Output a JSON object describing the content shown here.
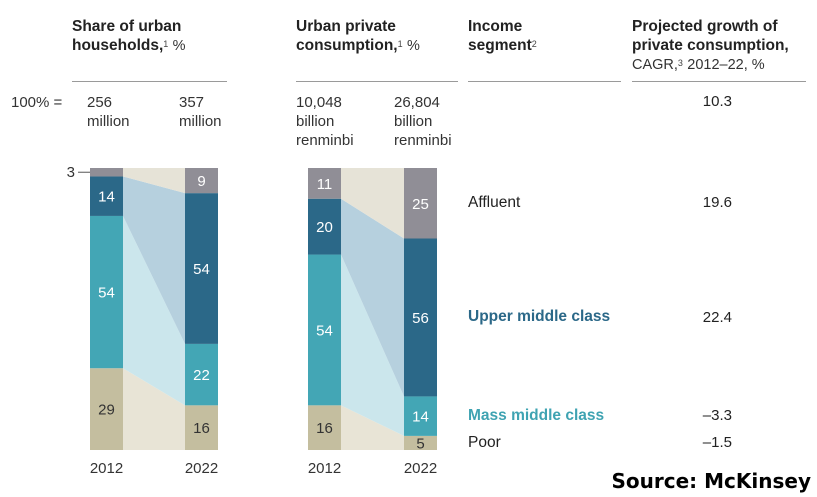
{
  "headers": {
    "households": {
      "line1": "Share of urban",
      "line2": "households,",
      "sup": "1",
      "unit": "%"
    },
    "consumption": {
      "line1": "Urban private",
      "line2": "consumption,",
      "sup": "1",
      "unit": "%"
    },
    "segment": {
      "line1": "Income",
      "line2": "segment",
      "sup": "2"
    },
    "growth": {
      "line1": "Projected growth of",
      "line2": "private consumption,",
      "line3a": "CAGR,",
      "sup": "3",
      "line3b": "2012–22, %"
    }
  },
  "totals": {
    "label": "100% =",
    "households_2012": {
      "l1": "256",
      "l2": "million"
    },
    "households_2022": {
      "l1": "357",
      "l2": "million"
    },
    "consumption_2012": {
      "l1": "10,048",
      "l2": "billion",
      "l3": "renminbi"
    },
    "consumption_2022": {
      "l1": "26,804",
      "l2": "billion",
      "l3": "renminbi"
    },
    "growth_total": "10.3"
  },
  "segments": [
    {
      "name": "Affluent",
      "growth": "19.6"
    },
    {
      "name": "Upper middle class",
      "growth": "22.4"
    },
    {
      "name": "Mass middle class",
      "growth": "–3.3"
    },
    {
      "name": "Poor",
      "growth": "–1.5"
    }
  ],
  "colors": {
    "poor": "#c4be9f",
    "mass": "#43a6b5",
    "upper": "#2b6888",
    "affluent": "#908e96",
    "link_poor": "#e8e4d6",
    "link_mass": "#cbe6ec",
    "link_upper": "#b6d0de",
    "link_affluent": "#e6e3d7"
  },
  "source": "Source: McKinsey",
  "chart_data": [
    {
      "type": "bar",
      "stacked": true,
      "title": "Share of urban households, %",
      "categories": [
        "2012",
        "2022"
      ],
      "series": [
        {
          "name": "Poor",
          "values": [
            29,
            16
          ]
        },
        {
          "name": "Mass middle class",
          "values": [
            54,
            22
          ]
        },
        {
          "name": "Upper middle class",
          "values": [
            14,
            54
          ]
        },
        {
          "name": "Affluent",
          "values": [
            3,
            9
          ]
        }
      ],
      "ylim": [
        0,
        100
      ]
    },
    {
      "type": "bar",
      "stacked": true,
      "title": "Urban private consumption, %",
      "categories": [
        "2012",
        "2022"
      ],
      "series": [
        {
          "name": "Poor",
          "values": [
            16,
            5
          ]
        },
        {
          "name": "Mass middle class",
          "values": [
            54,
            14
          ]
        },
        {
          "name": "Upper middle class",
          "values": [
            20,
            56
          ]
        },
        {
          "name": "Affluent",
          "values": [
            11,
            25
          ]
        }
      ],
      "ylim": [
        0,
        100
      ]
    }
  ]
}
